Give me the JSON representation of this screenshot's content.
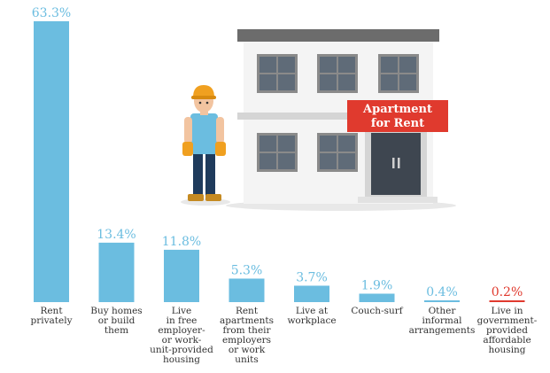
{
  "chart_data": {
    "type": "bar",
    "title": "",
    "xlabel": "",
    "ylabel": "",
    "ylim": [
      0,
      63.3
    ],
    "grid": false,
    "legend": "none",
    "unit": "%",
    "categories": [
      "Rent privately",
      "Buy homes or build them",
      "Live in free employer- or work-unit-provided housing",
      "Rent apartments from their employers or work units",
      "Live at workplace",
      "Couch-surf",
      "Other informal arrangements",
      "Live in government-provided affordable housing"
    ],
    "category_lines": [
      [
        "Rent",
        "privately"
      ],
      [
        "Buy homes",
        "or build",
        "them"
      ],
      [
        "Live",
        "in free",
        "employer-",
        "or work-",
        "unit-provided",
        "housing"
      ],
      [
        "Rent",
        "apartments",
        "from their",
        "employers",
        "or work",
        "units"
      ],
      [
        "Live at",
        "workplace"
      ],
      [
        "Couch-surf"
      ],
      [
        "Other",
        "informal",
        "arrangements"
      ],
      [
        "Live in",
        "government-",
        "provided",
        "affordable",
        "housing"
      ]
    ],
    "values": [
      63.3,
      13.4,
      11.8,
      5.3,
      3.7,
      1.9,
      0.4,
      0.2
    ],
    "value_labels": [
      "63.3%",
      "13.4%",
      "11.8%",
      "5.3%",
      "3.7%",
      "1.9%",
      "0.4%",
      "0.2%"
    ],
    "highlight_index": 7
  },
  "illustration": {
    "sign_lines": [
      "Apartment",
      "for Rent"
    ],
    "icons": [
      "worker-figure-icon",
      "apartment-building-icon"
    ]
  },
  "colors": {
    "bar": "#6bbde0",
    "highlight": "#e03a2e",
    "category_text": "#333333"
  }
}
